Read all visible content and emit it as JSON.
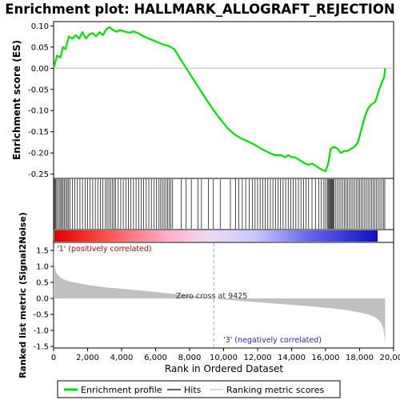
{
  "title": "Enrichment plot: HALLMARK_ALLOGRAFT_REJECTION",
  "colors": {
    "es_line": "#00e000",
    "hit": "#000000",
    "metric_fill": "#c0c0c0",
    "pos_label": "#cc0000",
    "neg_label": "#2222cc",
    "zero_line": "#bbbbbb"
  },
  "legend": {
    "items": [
      {
        "label": "Enrichment profile",
        "color": "#00e000",
        "kind": "thick-line"
      },
      {
        "label": "Hits",
        "color": "#000000",
        "kind": "thin-line"
      },
      {
        "label": "Ranking metric scores",
        "color": "#c0c0c0",
        "kind": "thin-line"
      }
    ]
  },
  "annotations": {
    "positive": "'1' (positively correlated)",
    "negative": "'3' (negatively correlated)",
    "zero_cross": "Zero cross at 9425"
  },
  "chart_data": [
    {
      "panel": "enrichment-score",
      "type": "line",
      "ylabel": "Enrichment score (ES)",
      "xlim": [
        0,
        20000
      ],
      "ylim": [
        -0.26,
        0.11
      ],
      "yticks": [
        0.1,
        0.05,
        0.0,
        -0.05,
        -0.1,
        -0.15,
        -0.2,
        -0.25
      ],
      "ytick_labels": [
        "0.10",
        "0.05",
        "0.00",
        "-0.05",
        "-0.10",
        "-0.15",
        "-0.20",
        "-0.25"
      ],
      "grid": false,
      "x": [
        0,
        200,
        400,
        550,
        700,
        900,
        1100,
        1300,
        1500,
        1700,
        1900,
        2100,
        2300,
        2500,
        2700,
        2900,
        3100,
        3300,
        3500,
        3700,
        3900,
        4100,
        4300,
        4500,
        4700,
        5000,
        5300,
        5600,
        5900,
        6200,
        6500,
        6800,
        7100,
        7400,
        7800,
        8200,
        8600,
        9000,
        9425,
        9800,
        10200,
        10600,
        11000,
        11400,
        11800,
        12200,
        12600,
        13000,
        13400,
        13600,
        13800,
        14000,
        14200,
        14400,
        14600,
        14800,
        15000,
        15200,
        15400,
        15600,
        15800,
        16000,
        16150,
        16300,
        16500,
        16700,
        16900,
        17100,
        17300,
        17500,
        17700,
        17900,
        18100,
        18300,
        18500,
        18700,
        18900,
        19000,
        19150,
        19300,
        19450,
        19500
      ],
      "y": [
        0.0,
        0.03,
        0.025,
        0.05,
        0.045,
        0.075,
        0.07,
        0.078,
        0.07,
        0.085,
        0.07,
        0.08,
        0.083,
        0.075,
        0.085,
        0.078,
        0.092,
        0.097,
        0.09,
        0.086,
        0.09,
        0.088,
        0.085,
        0.084,
        0.087,
        0.082,
        0.075,
        0.07,
        0.065,
        0.06,
        0.055,
        0.052,
        0.045,
        0.025,
        0.0,
        -0.025,
        -0.05,
        -0.075,
        -0.1,
        -0.12,
        -0.14,
        -0.155,
        -0.165,
        -0.172,
        -0.18,
        -0.19,
        -0.198,
        -0.205,
        -0.205,
        -0.21,
        -0.205,
        -0.21,
        -0.21,
        -0.215,
        -0.22,
        -0.225,
        -0.228,
        -0.225,
        -0.23,
        -0.235,
        -0.24,
        -0.243,
        -0.225,
        -0.19,
        -0.185,
        -0.19,
        -0.2,
        -0.195,
        -0.195,
        -0.19,
        -0.185,
        -0.175,
        -0.145,
        -0.115,
        -0.095,
        -0.085,
        -0.08,
        -0.07,
        -0.05,
        -0.035,
        -0.02,
        0.0
      ]
    },
    {
      "panel": "hits",
      "type": "scatter",
      "description_free": true,
      "x": [
        20,
        60,
        120,
        180,
        260,
        340,
        420,
        480,
        560,
        640,
        720,
        800,
        880,
        960,
        1100,
        1250,
        1400,
        1550,
        1700,
        1850,
        2000,
        2150,
        2300,
        2450,
        2600,
        2750,
        2900,
        3050,
        3150,
        3250,
        3350,
        3450,
        3550,
        3650,
        3800,
        3950,
        4100,
        4250,
        4400,
        4550,
        4700,
        4850,
        5000,
        5150,
        5300,
        5450,
        5600,
        5750,
        5900,
        6050,
        6200,
        6300,
        6400,
        6500,
        6600,
        6700,
        6800,
        6900,
        7000,
        7500,
        7800,
        8100,
        8500,
        8700,
        9100,
        9400,
        9800,
        10400,
        10700,
        10900,
        11100,
        11300,
        11500,
        11700,
        11850,
        12000,
        12150,
        12300,
        12450,
        12600,
        12750,
        12900,
        13050,
        13200,
        13350,
        13500,
        13650,
        13800,
        13950,
        14100,
        14250,
        14400,
        14550,
        14700,
        14850,
        15000,
        15200,
        15400,
        15600,
        15750,
        15900,
        16000,
        16100,
        16150,
        16200,
        16250,
        16300,
        16350,
        16400,
        16450,
        16500,
        16600,
        16700,
        16800,
        16900,
        17000,
        17100,
        17200,
        17300,
        17400,
        17500,
        17600,
        17700,
        17800,
        17900,
        18000,
        18100,
        18200,
        18300,
        18400,
        18500,
        18600,
        18700,
        18800,
        18900,
        19000,
        19100,
        19200,
        19300,
        19400,
        19480
      ]
    },
    {
      "panel": "ranked-metric",
      "type": "area",
      "ylabel": "Ranked list metric (Signal2Noise)",
      "xlabel": "Rank in Ordered Dataset",
      "xlim": [
        0,
        20000
      ],
      "ylim": [
        -1.55,
        1.75
      ],
      "xticks": [
        0,
        2000,
        4000,
        6000,
        8000,
        10000,
        12000,
        14000,
        16000,
        18000,
        20000
      ],
      "xtick_labels": [
        "0",
        "2,000",
        "4,000",
        "6,000",
        "8,000",
        "10,000",
        "12,000",
        "14,000",
        "16,000",
        "18,000",
        "20,000"
      ],
      "yticks": [
        1.5,
        1.0,
        0.5,
        0.0,
        -0.5,
        -1.0,
        -1.5
      ],
      "ytick_labels": [
        "1.5",
        "1.0",
        "0.5",
        "0.0",
        "-0.5",
        "-1.0",
        "-1.5"
      ],
      "zero_cross": 9425,
      "x": [
        0,
        30,
        80,
        150,
        300,
        500,
        800,
        1200,
        2000,
        3000,
        4000,
        5000,
        6000,
        7000,
        8000,
        9000,
        9425,
        10000,
        11000,
        12000,
        13000,
        14000,
        15000,
        16000,
        17000,
        17500,
        18000,
        18500,
        18800,
        19000,
        19200,
        19300,
        19400,
        19450,
        19500
      ],
      "y": [
        1.65,
        1.2,
        0.95,
        0.8,
        0.7,
        0.62,
        0.55,
        0.5,
        0.42,
        0.35,
        0.3,
        0.25,
        0.2,
        0.14,
        0.09,
        0.03,
        0.0,
        -0.03,
        -0.08,
        -0.12,
        -0.16,
        -0.2,
        -0.24,
        -0.29,
        -0.35,
        -0.39,
        -0.44,
        -0.5,
        -0.56,
        -0.62,
        -0.72,
        -0.8,
        -0.95,
        -1.15,
        -1.45
      ]
    }
  ]
}
